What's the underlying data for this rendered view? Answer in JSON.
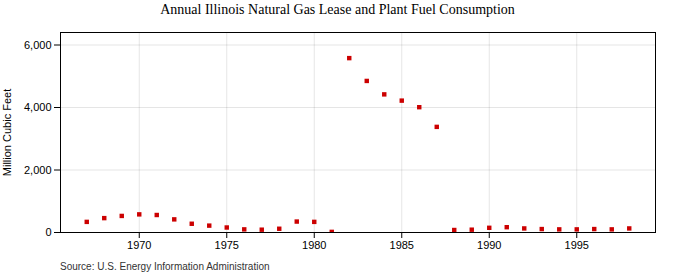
{
  "chart_data": {
    "type": "scatter",
    "title": "Annual Illinois Natural Gas Lease and Plant Fuel Consumption",
    "ylabel": "Million Cubic Feet",
    "source": "Source: U.S. Energy Information Administration",
    "x": [
      1967,
      1968,
      1969,
      1970,
      1971,
      1972,
      1973,
      1974,
      1975,
      1976,
      1977,
      1978,
      1979,
      1980,
      1981,
      1982,
      1983,
      1984,
      1985,
      1986,
      1987,
      1988,
      1989,
      1990,
      1991,
      1992,
      1993,
      1994,
      1995,
      1996,
      1997,
      1998
    ],
    "values": [
      340,
      460,
      530,
      580,
      560,
      420,
      280,
      220,
      160,
      100,
      90,
      120,
      350,
      340,
      20,
      5580,
      4850,
      4420,
      4220,
      4010,
      3380,
      80,
      90,
      150,
      170,
      130,
      110,
      100,
      100,
      110,
      100,
      130
    ],
    "color": "#cc0000",
    "marker": "square",
    "xlim": [
      1965.5,
      1999.5
    ],
    "xticks": [
      1970,
      1975,
      1980,
      1985,
      1990,
      1995
    ],
    "ylim": [
      0,
      6400
    ],
    "yticks": [
      0,
      {
        "value": 2000,
        "label": "2,000"
      },
      {
        "value": 4000,
        "label": "4,000"
      },
      {
        "value": 6000,
        "label": "6,000"
      }
    ],
    "grid": true
  }
}
